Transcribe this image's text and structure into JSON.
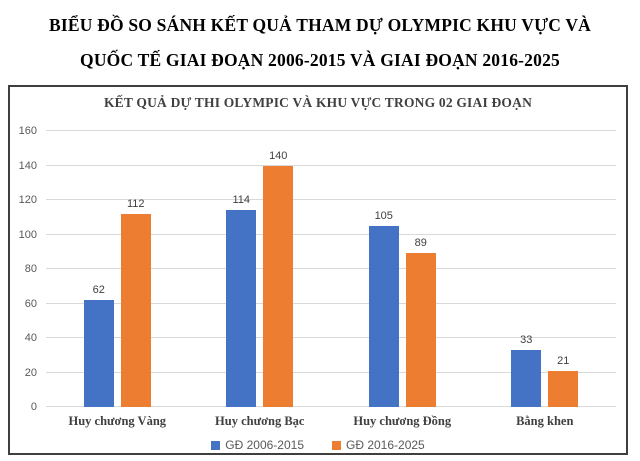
{
  "page_title": {
    "line1": "BIỂU ĐỒ SO SÁNH KẾT QUẢ THAM DỰ OLYMPIC KHU VỰC VÀ",
    "line2": "QUỐC TẾ GIAI ĐOẠN 2006-2015 VÀ GIAI ĐOẠN 2016-2025"
  },
  "chart_data": {
    "type": "bar",
    "title": "KẾT QUẢ DỰ THI OLYMPIC VÀ KHU VỰC TRONG 02 GIAI ĐOẠN",
    "categories": [
      "Huy chương Vàng",
      "Huy chương Bạc",
      "Huy chương Đồng",
      "Bằng khen"
    ],
    "series": [
      {
        "name": "GĐ 2006-2015",
        "color": "#4472C4",
        "values": [
          62,
          114,
          105,
          33
        ]
      },
      {
        "name": "GĐ 2016-2025",
        "color": "#ED7D31",
        "values": [
          112,
          140,
          89,
          21
        ]
      }
    ],
    "ylim": [
      0,
      160
    ],
    "yticks": [
      0,
      20,
      40,
      60,
      80,
      100,
      120,
      140,
      160
    ],
    "grid": true,
    "data_labels": true,
    "legend_position": "bottom",
    "colors": {
      "grid": "#d9d9d9",
      "tick_text": "#595959",
      "label_text": "#404040"
    }
  }
}
